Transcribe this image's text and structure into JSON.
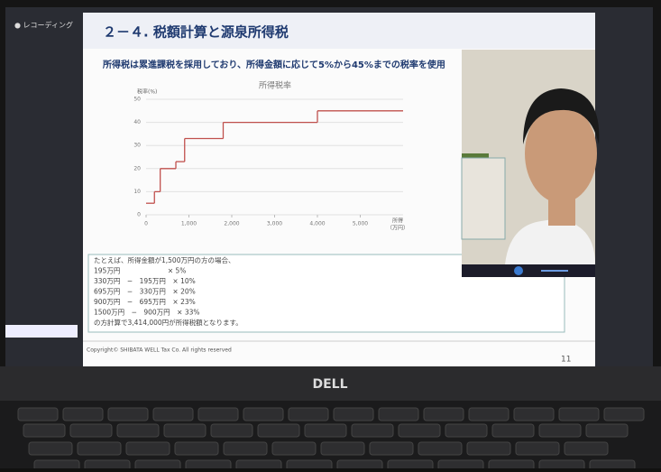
{
  "recording_label": "● レコーディング",
  "slide": {
    "title": "２－４. 税額計算と源泉所得税",
    "subtitle": "所得税は累進課税を採用しており、所得金額に応じて5%から45%までの税率を使用",
    "example": [
      "たとえば、所得金額が1,500万円の方の場合、",
      "195万円　　　　　　　× 5%",
      "330万円　−　195万円　× 10%",
      "695万円　−　330万円　× 20%",
      "900万円　−　695万円　× 23%",
      "1500万円　−　900万円　× 33%",
      "の方計算で3,414,000円が所得税額となります。"
    ],
    "copyright": "Copyright© SHIBATA WELL Tax Co. All rights reserved",
    "page": "11"
  },
  "brand": "DELL",
  "chart_data": {
    "type": "line",
    "step": "post",
    "title": "所得税率",
    "y_label": "税率(%)",
    "x_label": [
      "所得",
      "（万円）"
    ],
    "x": [
      0,
      195,
      330,
      695,
      900,
      1800,
      4000
    ],
    "values": [
      5,
      10,
      20,
      23,
      33,
      40,
      45
    ],
    "color": "#c0504d",
    "xlim": [
      0,
      6000
    ],
    "xticks": [
      0,
      {
        "value": 1000,
        "label": "1,000"
      },
      {
        "value": 2000,
        "label": "2,000"
      },
      {
        "value": 3000,
        "label": "3,000"
      },
      {
        "value": 4000,
        "label": "4,000"
      },
      {
        "value": 5000,
        "label": "5,000"
      }
    ],
    "ylim": [
      0,
      50
    ],
    "yticks": [
      0,
      10,
      20,
      30,
      40,
      50
    ],
    "grid": true
  }
}
